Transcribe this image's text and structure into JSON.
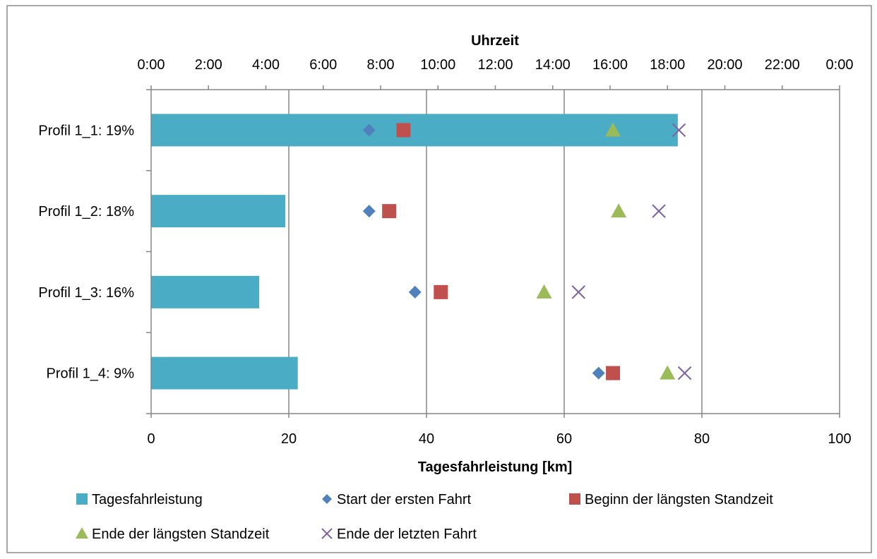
{
  "chart_data": {
    "type": "bar",
    "orientation": "horizontal",
    "categories": [
      "Profil 1_1: 19%",
      "Profil 1_2: 18%",
      "Profil 1_3: 16%",
      "Profil 1_4: 9%"
    ],
    "xlabel": "Tagesfahrleistung [km]",
    "xlim": [
      0,
      100
    ],
    "x_ticks": [
      "0",
      "20",
      "40",
      "60",
      "80",
      "100"
    ],
    "secondary_xlabel": "Uhrzeit",
    "secondary_xlim": [
      0,
      24
    ],
    "secondary_x_ticks": [
      "0:00",
      "2:00",
      "4:00",
      "6:00",
      "8:00",
      "10:00",
      "12:00",
      "14:00",
      "16:00",
      "18:00",
      "20:00",
      "22:00",
      "0:00"
    ],
    "grid": "vertical",
    "legend_position": "bottom",
    "series": [
      {
        "name": "Tagesfahrleistung",
        "kind": "bar",
        "axis": "bottom",
        "color": "#4BACC6",
        "values": [
          76.5,
          19.5,
          15.7,
          21.3
        ]
      },
      {
        "name": "Start der ersten Fahrt",
        "kind": "marker",
        "marker": "diamond",
        "axis": "top",
        "color": "#4F81BD",
        "values": [
          7.6,
          7.6,
          9.2,
          15.6
        ]
      },
      {
        "name": "Beginn der längsten Standzeit",
        "kind": "marker",
        "marker": "square",
        "axis": "top",
        "color": "#C0504D",
        "values": [
          8.8,
          8.3,
          10.1,
          16.1
        ]
      },
      {
        "name": "Ende der längsten Standzeit",
        "kind": "marker",
        "marker": "triangle",
        "axis": "top",
        "color": "#9BBB59",
        "values": [
          16.1,
          16.3,
          13.7,
          18.0
        ]
      },
      {
        "name": "Ende der letzten Fahrt",
        "kind": "marker",
        "marker": "x",
        "axis": "top",
        "color": "#8064A2",
        "values": [
          18.4,
          17.7,
          14.9,
          18.6
        ]
      }
    ]
  }
}
